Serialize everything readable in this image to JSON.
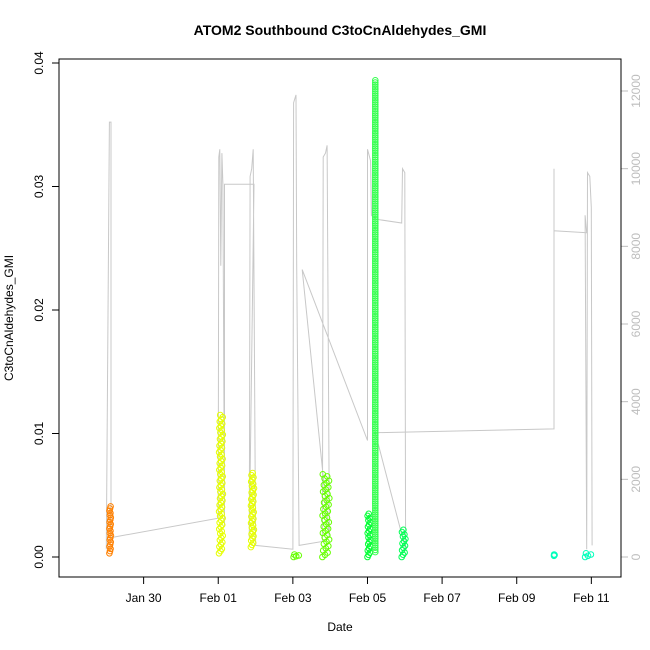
{
  "chart_data": {
    "type": "scatter",
    "title": "ATOM2 Southbound C3toCnAldehydes_GMI",
    "xlabel": "Date",
    "ylabel": "C3toCnAldehydes_GMI",
    "x_axis": {
      "type": "date",
      "range": [
        "2016-01-28T00:00",
        "2016-02-11T12:00"
      ],
      "tick_labels": [
        "Jan 30",
        "Feb 01",
        "Feb 03",
        "Feb 05",
        "Feb 07",
        "Feb 09",
        "Feb 11"
      ],
      "tick_dates": [
        "2016-01-30",
        "2016-02-01",
        "2016-02-03",
        "2016-02-05",
        "2016-02-07",
        "2016-02-09",
        "2016-02-11"
      ]
    },
    "y_axis": {
      "range": [
        0,
        0.04
      ],
      "ticks": [
        0.0,
        0.01,
        0.02,
        0.03,
        0.04
      ],
      "tick_labels": [
        "0.00",
        "0.01",
        "0.02",
        "0.03",
        "0.04"
      ]
    },
    "y2_axis": {
      "label": "",
      "range": [
        0,
        12500
      ],
      "ticks": [
        0,
        2000,
        4000,
        6000,
        8000,
        10000,
        12000
      ],
      "tick_labels": [
        "0",
        "2000",
        "4000",
        "6000",
        "8000",
        "10000",
        "12000"
      ],
      "color": "#bdbdbd"
    },
    "grid": false,
    "legend": "none",
    "marker": "open-circle",
    "series": [
      {
        "color": "#ff8000",
        "x_range": [
          "2016-01-29T02:00",
          "2016-01-29T03:00"
        ],
        "y_min": 0.0003,
        "y_max": 0.0041
      },
      {
        "color": "#e6ff00",
        "x_range": [
          "2016-02-01T00:30",
          "2016-02-01T03:00"
        ],
        "y_min": 0.0003,
        "y_max": 0.0115
      },
      {
        "color": "#e6ff00",
        "x_range": [
          "2016-02-01T21:00",
          "2016-02-01T23:00"
        ],
        "y_min": 0.0008,
        "y_max": 0.0068
      },
      {
        "color": "#66ff00",
        "x_range": [
          "2016-02-03T00:30",
          "2016-02-03T05:00"
        ],
        "y_min": 0.0,
        "y_max": 0.0002
      },
      {
        "color": "#66ff00",
        "x_range": [
          "2016-02-03T19:00",
          "2016-02-03T23:30"
        ],
        "y_min": 0.0,
        "y_max": 0.0067
      },
      {
        "color": "#00ff33",
        "x_range": [
          "2016-02-05T00:00",
          "2016-02-05T02:00"
        ],
        "y_min": 0.0,
        "y_max": 0.0035
      },
      {
        "color": "#33ff4d",
        "x_range": [
          "2016-02-05T05:00",
          "2016-02-05T05:00"
        ],
        "y_min": 0.0004,
        "y_max": 0.0386
      },
      {
        "color": "#00ff55",
        "x_range": [
          "2016-02-05T22:00",
          "2016-02-06T00:30"
        ],
        "y_min": 0.0,
        "y_max": 0.0022
      },
      {
        "color": "#00ffbb",
        "x_range": [
          "2016-02-10T00:00",
          "2016-02-10T00:30"
        ],
        "y_min": 0.0001,
        "y_max": 0.0002
      },
      {
        "color": "#00ffbb",
        "x_range": [
          "2016-02-10T20:00",
          "2016-02-11T01:00"
        ],
        "y_min": 0.0,
        "y_max": 0.0003
      }
    ],
    "altitude_line": {
      "color": "#c8c8c8",
      "axis": "y2",
      "points": [
        [
          "2016-01-29T00:00",
          200
        ],
        [
          "2016-01-29T02:00",
          11200
        ],
        [
          "2016-01-29T03:00",
          11200
        ],
        [
          "2016-01-29T03:00",
          500
        ],
        [
          "2016-02-01T00:00",
          1000
        ],
        [
          "2016-02-01T00:20",
          10300
        ],
        [
          "2016-02-01T01:00",
          10500
        ],
        [
          "2016-02-01T01:40",
          7500
        ],
        [
          "2016-02-01T02:20",
          10400
        ],
        [
          "2016-02-01T03:00",
          9600
        ],
        [
          "2016-02-01T04:00",
          800
        ],
        [
          "2016-02-01T04:00",
          9600
        ],
        [
          "2016-02-01T23:00",
          9600
        ],
        [
          "2016-02-01T20:00",
          500
        ],
        [
          "2016-02-01T20:30",
          9800
        ],
        [
          "2016-02-01T21:30",
          10000
        ],
        [
          "2016-02-01T22:30",
          10500
        ],
        [
          "2016-02-02T00:00",
          300
        ],
        [
          "2016-02-03T00:00",
          200
        ],
        [
          "2016-02-03T00:30",
          11700
        ],
        [
          "2016-02-03T02:00",
          11900
        ],
        [
          "2016-02-03T02:30",
          7500
        ],
        [
          "2016-02-03T04:00",
          300
        ],
        [
          "2016-02-03T19:00",
          400
        ],
        [
          "2016-02-03T19:30",
          10300
        ],
        [
          "2016-02-03T21:00",
          10400
        ],
        [
          "2016-02-03T22:00",
          10600
        ],
        [
          "2016-02-03T23:30",
          500
        ],
        [
          "2016-02-03T06:00",
          7400
        ],
        [
          "2016-02-05T00:00",
          3000
        ],
        [
          "2016-02-05T00:00",
          10500
        ],
        [
          "2016-02-05T02:00",
          10200
        ],
        [
          "2016-02-05T02:30",
          8800
        ],
        [
          "2016-02-05T05:30",
          8700
        ],
        [
          "2016-02-05T22:00",
          8600
        ],
        [
          "2016-02-05T22:30",
          10000
        ],
        [
          "2016-02-06T00:00",
          9900
        ],
        [
          "2016-02-06T00:30",
          200
        ],
        [
          "2016-02-05T05:00",
          3200
        ],
        [
          "2016-02-10T00:00",
          3300
        ],
        [
          "2016-02-10T00:00",
          10000
        ],
        [
          "2016-02-10T00:00",
          8400
        ],
        [
          "2016-02-10T21:00",
          8350
        ],
        [
          "2016-02-10T20:00",
          8800
        ],
        [
          "2016-02-10T21:00",
          200
        ],
        [
          "2016-02-10T21:30",
          9900
        ],
        [
          "2016-02-10T23:00",
          9800
        ],
        [
          "2016-02-11T00:00",
          9000
        ],
        [
          "2016-02-11T00:30",
          300
        ]
      ]
    }
  }
}
